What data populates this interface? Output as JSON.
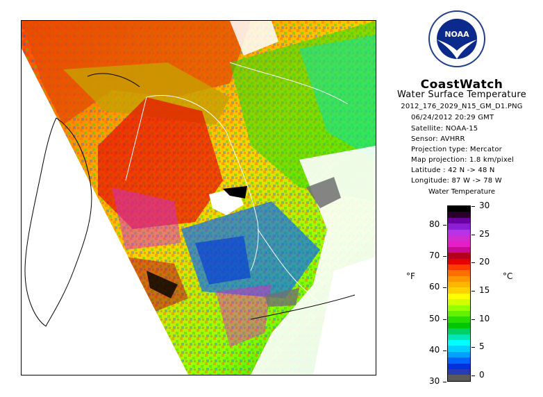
{
  "header": {
    "brand": "CoastWatch",
    "product": "Water Surface Temperature",
    "filename": "2012_176_2029_N15_GM_D1.PNG"
  },
  "metadata": {
    "datetime": "06/24/2012   20:29 GMT",
    "satellite": "Satellite: NOAA-15",
    "sensor": "Sensor: AVHRR",
    "projection_type": "Projection type:  Mercator",
    "map_projection": "Map projection: 1.8 km/pixel",
    "latitude": "Latitude : 42 N -> 48 N",
    "longitude": "Longitude: 87 W -> 78 W"
  },
  "logo": {
    "text": "NOAA",
    "icon": "noaa-logo-icon"
  },
  "legend": {
    "title": "Water Temperature",
    "unit_left": "°F",
    "unit_right": "°C",
    "fahrenheit_ticks": [
      "80",
      "70",
      "60",
      "50",
      "40",
      "30"
    ],
    "celsius_ticks": [
      "30",
      "25",
      "20",
      "15",
      "10",
      "5",
      "0"
    ],
    "colors": [
      "#000000",
      "#2a002a",
      "#6b00a0",
      "#8c1fd6",
      "#b832e8",
      "#d22bd2",
      "#e61ec8",
      "#c80a96",
      "#b4001e",
      "#e60000",
      "#ff3c00",
      "#ff6e00",
      "#ff9600",
      "#ffb400",
      "#ffd200",
      "#ffff00",
      "#d2ff00",
      "#96ff00",
      "#64f000",
      "#28dc00",
      "#00c800",
      "#00d264",
      "#00e6b4",
      "#00ffff",
      "#00d2ff",
      "#00a0ff",
      "#0064ff",
      "#0032dc",
      "#283cb4",
      "#5a5a5a"
    ]
  },
  "map": {
    "north_lat": 48,
    "south_lat": 42,
    "west_lon": -87,
    "east_lon": -78,
    "land_white": "#ffffff",
    "coast_color": "#000000",
    "border_color": "#ffffff",
    "cloud_gray": "#707070"
  }
}
